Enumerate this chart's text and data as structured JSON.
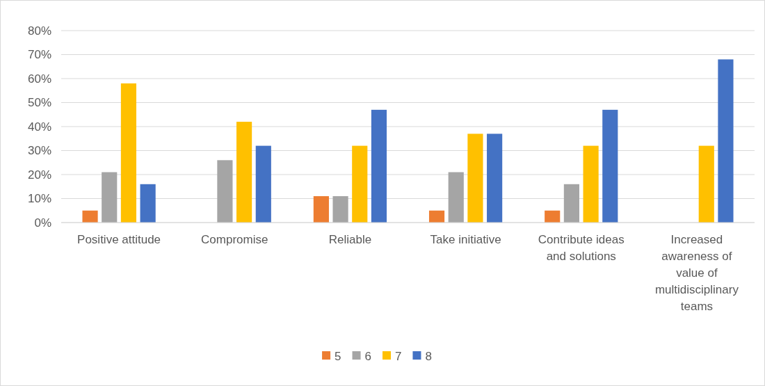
{
  "chart_data": {
    "type": "bar",
    "categories": [
      "Positive attitude",
      "Compromise",
      "Reliable",
      "Take initiative",
      "Contribute ideas and solutions",
      "Increased awareness of value of multidisciplinary teams"
    ],
    "series": [
      {
        "name": "5",
        "color": "#ed7d31",
        "values": [
          5,
          0,
          11,
          5,
          5,
          0
        ]
      },
      {
        "name": "6",
        "color": "#a5a5a5",
        "values": [
          21,
          26,
          11,
          21,
          16,
          0
        ]
      },
      {
        "name": "7",
        "color": "#ffc000",
        "values": [
          58,
          42,
          32,
          37,
          32,
          32
        ]
      },
      {
        "name": "8",
        "color": "#4472c4",
        "values": [
          16,
          32,
          47,
          37,
          47,
          68
        ]
      }
    ],
    "ylim": [
      0,
      80
    ],
    "yticks": [
      {
        "value": 0,
        "label": "0%"
      },
      {
        "value": 10,
        "label": "10%"
      },
      {
        "value": 20,
        "label": "20%"
      },
      {
        "value": 30,
        "label": "30%"
      },
      {
        "value": 40,
        "label": "40%"
      },
      {
        "value": 50,
        "label": "50%"
      },
      {
        "value": 60,
        "label": "60%"
      },
      {
        "value": 70,
        "label": "70%"
      },
      {
        "value": 80,
        "label": "80%"
      }
    ],
    "grid": "y",
    "legend": "bottom"
  }
}
